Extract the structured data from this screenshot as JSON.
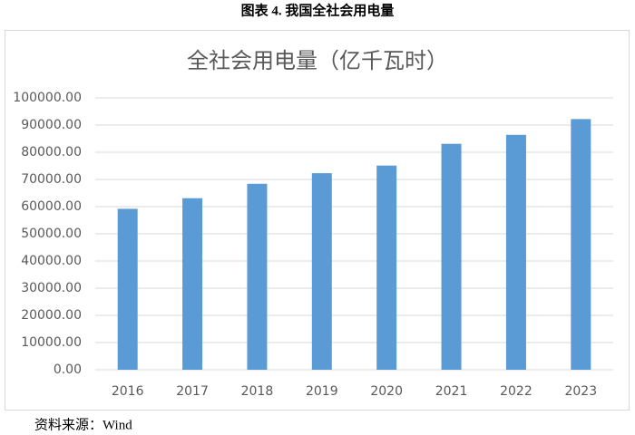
{
  "caption": "图表 4.  我国全社会用电量",
  "source": "资料来源：Wind",
  "chart_data": {
    "type": "bar",
    "title": "全社会用电量（亿千瓦时）",
    "categories": [
      "2016",
      "2017",
      "2018",
      "2019",
      "2020",
      "2021",
      "2022",
      "2023"
    ],
    "values": [
      59200,
      63100,
      68400,
      72300,
      75100,
      83100,
      86400,
      92200
    ],
    "color": "#5b9bd5",
    "ylim": [
      0,
      100000
    ],
    "yticks": [
      {
        "value": 0,
        "label": "0.00"
      },
      {
        "value": 10000,
        "label": "10000.00"
      },
      {
        "value": 20000,
        "label": "20000.00"
      },
      {
        "value": 30000,
        "label": "30000.00"
      },
      {
        "value": 40000,
        "label": "40000.00"
      },
      {
        "value": 50000,
        "label": "50000.00"
      },
      {
        "value": 60000,
        "label": "60000.00"
      },
      {
        "value": 70000,
        "label": "70000.00"
      },
      {
        "value": 80000,
        "label": "80000.00"
      },
      {
        "value": 90000,
        "label": "90000.00"
      },
      {
        "value": 100000,
        "label": "100000.00"
      }
    ],
    "grid": true
  }
}
